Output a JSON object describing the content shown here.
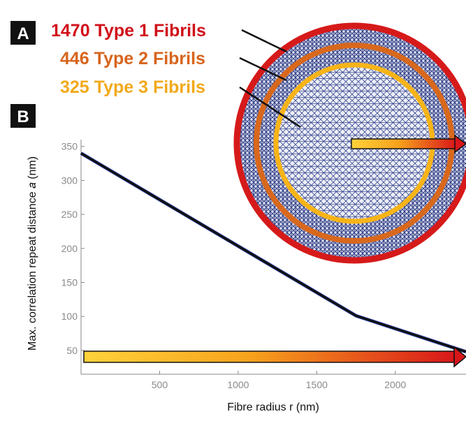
{
  "panels": {
    "a": "A",
    "b": "B"
  },
  "fibrils": [
    {
      "label": "1470 Type 1 Fibrils",
      "color": "#d0101a"
    },
    {
      "label": "446 Type 2 Fibrils",
      "color": "#d8641c"
    },
    {
      "label": "325 Type 3 Fibrils",
      "color": "#f2a91a"
    }
  ],
  "cross_section": {
    "mesh_color": "#2e3e88",
    "ring_colors": [
      "#d61a1a",
      "#d8681c",
      "#f7b418"
    ]
  },
  "chart_data": {
    "type": "line",
    "title": "",
    "xlabel": "Fibre radius r (nm)",
    "ylabel": "Max. correlation repeat distance 𝑎 (nm)",
    "xlim": [
      0,
      2450
    ],
    "ylim": [
      15,
      360
    ],
    "x_ticks": [
      500,
      1000,
      1500,
      2000
    ],
    "y_ticks": [
      50,
      100,
      150,
      200,
      250,
      300,
      350
    ],
    "grid": false,
    "series": [
      {
        "x": [
          0,
          1750,
          2450
        ],
        "y": [
          340,
          101,
          48
        ],
        "color": "#111111"
      }
    ]
  }
}
